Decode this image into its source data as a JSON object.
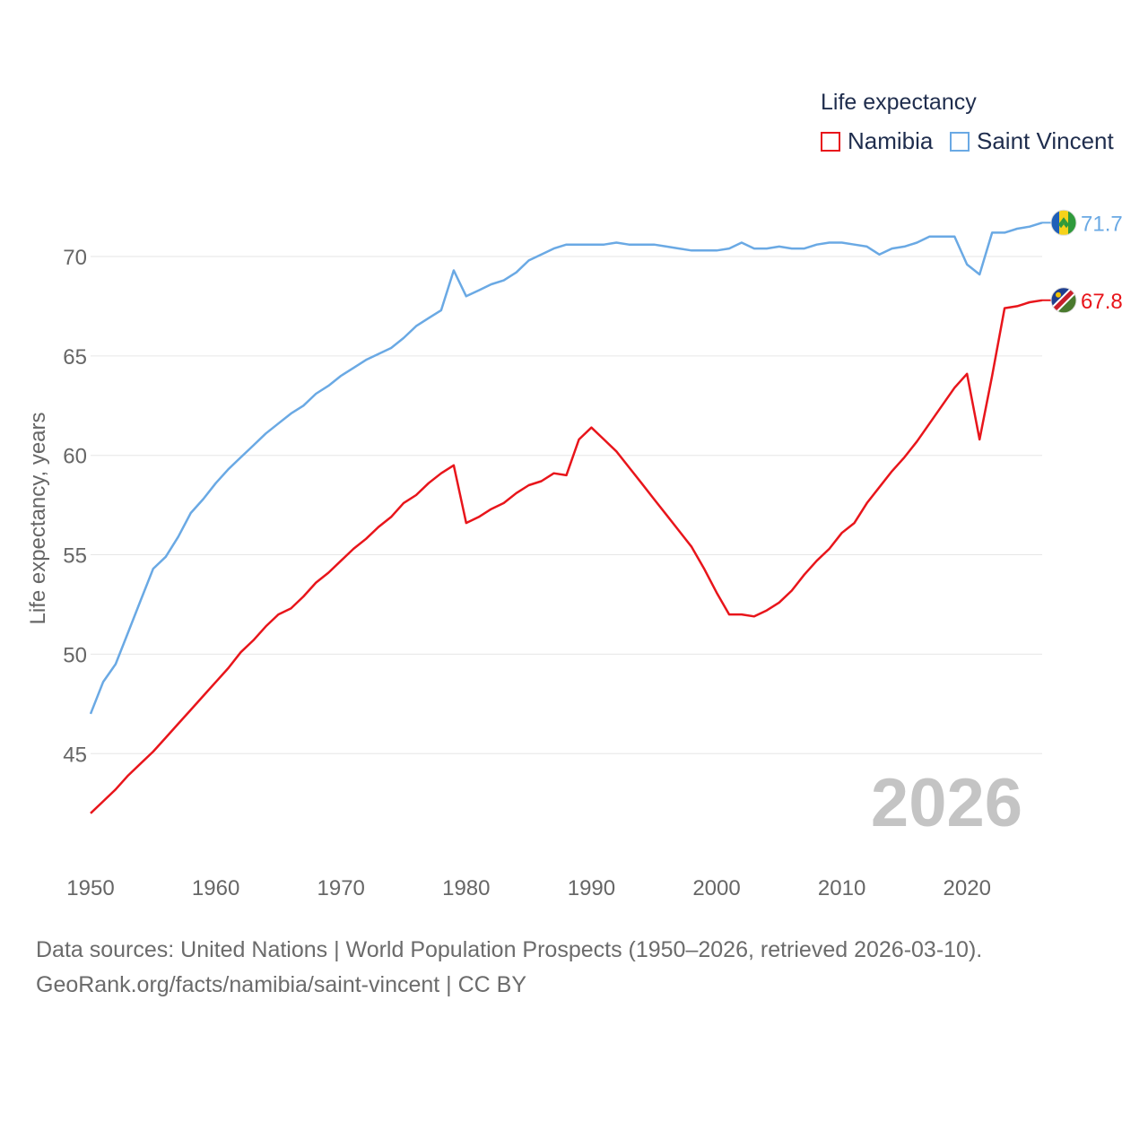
{
  "legend": {
    "title": "Life expectancy",
    "items": [
      {
        "label": "Namibia",
        "color": "#e8151b"
      },
      {
        "label": "Saint Vincent",
        "color": "#6aa9e4"
      }
    ]
  },
  "year_overlay": "2026",
  "source": {
    "line1": "Data sources: United Nations | World Population Prospects (1950–2026, retrieved 2026-03-10).",
    "line2": "GeoRank.org/facts/namibia/saint-vincent | CC BY"
  },
  "chart_data": {
    "type": "line",
    "title": "Life expectancy",
    "xlabel": "",
    "ylabel": "Life expectancy, years",
    "xlim": [
      1950,
      2026
    ],
    "ylim": [
      40,
      73
    ],
    "x_ticks": [
      1950,
      1960,
      1970,
      1980,
      1990,
      2000,
      2010,
      2020
    ],
    "y_ticks": [
      45,
      50,
      55,
      60,
      65,
      70
    ],
    "grid": true,
    "legend_position": "top-right",
    "series": [
      {
        "name": "Saint Vincent",
        "color": "#6aa9e4",
        "end_label": "71.7",
        "points": [
          [
            1950,
            47.0
          ],
          [
            1951,
            48.6
          ],
          [
            1952,
            49.5
          ],
          [
            1953,
            51.1
          ],
          [
            1954,
            52.7
          ],
          [
            1955,
            54.3
          ],
          [
            1956,
            54.9
          ],
          [
            1957,
            55.9
          ],
          [
            1958,
            57.1
          ],
          [
            1959,
            57.8
          ],
          [
            1960,
            58.6
          ],
          [
            1961,
            59.3
          ],
          [
            1962,
            59.9
          ],
          [
            1963,
            60.5
          ],
          [
            1964,
            61.1
          ],
          [
            1965,
            61.6
          ],
          [
            1966,
            62.1
          ],
          [
            1967,
            62.5
          ],
          [
            1968,
            63.1
          ],
          [
            1969,
            63.5
          ],
          [
            1970,
            64.0
          ],
          [
            1971,
            64.4
          ],
          [
            1972,
            64.8
          ],
          [
            1973,
            65.1
          ],
          [
            1974,
            65.4
          ],
          [
            1975,
            65.9
          ],
          [
            1976,
            66.5
          ],
          [
            1977,
            66.9
          ],
          [
            1978,
            67.3
          ],
          [
            1979,
            69.3
          ],
          [
            1980,
            68.0
          ],
          [
            1981,
            68.3
          ],
          [
            1982,
            68.6
          ],
          [
            1983,
            68.8
          ],
          [
            1984,
            69.2
          ],
          [
            1985,
            69.8
          ],
          [
            1986,
            70.1
          ],
          [
            1987,
            70.4
          ],
          [
            1988,
            70.6
          ],
          [
            1989,
            70.6
          ],
          [
            1990,
            70.6
          ],
          [
            1991,
            70.6
          ],
          [
            1992,
            70.7
          ],
          [
            1993,
            70.6
          ],
          [
            1994,
            70.6
          ],
          [
            1995,
            70.6
          ],
          [
            1996,
            70.5
          ],
          [
            1997,
            70.4
          ],
          [
            1998,
            70.3
          ],
          [
            1999,
            70.3
          ],
          [
            2000,
            70.3
          ],
          [
            2001,
            70.4
          ],
          [
            2002,
            70.7
          ],
          [
            2003,
            70.4
          ],
          [
            2004,
            70.4
          ],
          [
            2005,
            70.5
          ],
          [
            2006,
            70.4
          ],
          [
            2007,
            70.4
          ],
          [
            2008,
            70.6
          ],
          [
            2009,
            70.7
          ],
          [
            2010,
            70.7
          ],
          [
            2011,
            70.6
          ],
          [
            2012,
            70.5
          ],
          [
            2013,
            70.1
          ],
          [
            2014,
            70.4
          ],
          [
            2015,
            70.5
          ],
          [
            2016,
            70.7
          ],
          [
            2017,
            71.0
          ],
          [
            2018,
            71.0
          ],
          [
            2019,
            71.0
          ],
          [
            2020,
            69.6
          ],
          [
            2021,
            69.1
          ],
          [
            2022,
            71.2
          ],
          [
            2023,
            71.2
          ],
          [
            2024,
            71.4
          ],
          [
            2025,
            71.5
          ],
          [
            2026,
            71.7
          ]
        ]
      },
      {
        "name": "Namibia",
        "color": "#e8151b",
        "end_label": "67.8",
        "points": [
          [
            1950,
            42.0
          ],
          [
            1951,
            42.6
          ],
          [
            1952,
            43.2
          ],
          [
            1953,
            43.9
          ],
          [
            1954,
            44.5
          ],
          [
            1955,
            45.1
          ],
          [
            1956,
            45.8
          ],
          [
            1957,
            46.5
          ],
          [
            1958,
            47.2
          ],
          [
            1959,
            47.9
          ],
          [
            1960,
            48.6
          ],
          [
            1961,
            49.3
          ],
          [
            1962,
            50.1
          ],
          [
            1963,
            50.7
          ],
          [
            1964,
            51.4
          ],
          [
            1965,
            52.0
          ],
          [
            1966,
            52.3
          ],
          [
            1967,
            52.9
          ],
          [
            1968,
            53.6
          ],
          [
            1969,
            54.1
          ],
          [
            1970,
            54.7
          ],
          [
            1971,
            55.3
          ],
          [
            1972,
            55.8
          ],
          [
            1973,
            56.4
          ],
          [
            1974,
            56.9
          ],
          [
            1975,
            57.6
          ],
          [
            1976,
            58.0
          ],
          [
            1977,
            58.6
          ],
          [
            1978,
            59.1
          ],
          [
            1979,
            59.5
          ],
          [
            1980,
            56.6
          ],
          [
            1981,
            56.9
          ],
          [
            1982,
            57.3
          ],
          [
            1983,
            57.6
          ],
          [
            1984,
            58.1
          ],
          [
            1985,
            58.5
          ],
          [
            1986,
            58.7
          ],
          [
            1987,
            59.1
          ],
          [
            1988,
            59.0
          ],
          [
            1989,
            60.8
          ],
          [
            1990,
            61.4
          ],
          [
            1991,
            60.8
          ],
          [
            1992,
            60.2
          ],
          [
            1993,
            59.4
          ],
          [
            1994,
            58.6
          ],
          [
            1995,
            57.8
          ],
          [
            1996,
            57.0
          ],
          [
            1997,
            56.2
          ],
          [
            1998,
            55.4
          ],
          [
            1999,
            54.3
          ],
          [
            2000,
            53.1
          ],
          [
            2001,
            52.0
          ],
          [
            2002,
            52.0
          ],
          [
            2003,
            51.9
          ],
          [
            2004,
            52.2
          ],
          [
            2005,
            52.6
          ],
          [
            2006,
            53.2
          ],
          [
            2007,
            54.0
          ],
          [
            2008,
            54.7
          ],
          [
            2009,
            55.3
          ],
          [
            2010,
            56.1
          ],
          [
            2011,
            56.6
          ],
          [
            2012,
            57.6
          ],
          [
            2013,
            58.4
          ],
          [
            2014,
            59.2
          ],
          [
            2015,
            59.9
          ],
          [
            2016,
            60.7
          ],
          [
            2017,
            61.6
          ],
          [
            2018,
            62.5
          ],
          [
            2019,
            63.4
          ],
          [
            2020,
            64.1
          ],
          [
            2021,
            60.8
          ],
          [
            2022,
            64.0
          ],
          [
            2023,
            67.4
          ],
          [
            2024,
            67.5
          ],
          [
            2025,
            67.7
          ],
          [
            2026,
            67.8
          ]
        ]
      }
    ]
  }
}
